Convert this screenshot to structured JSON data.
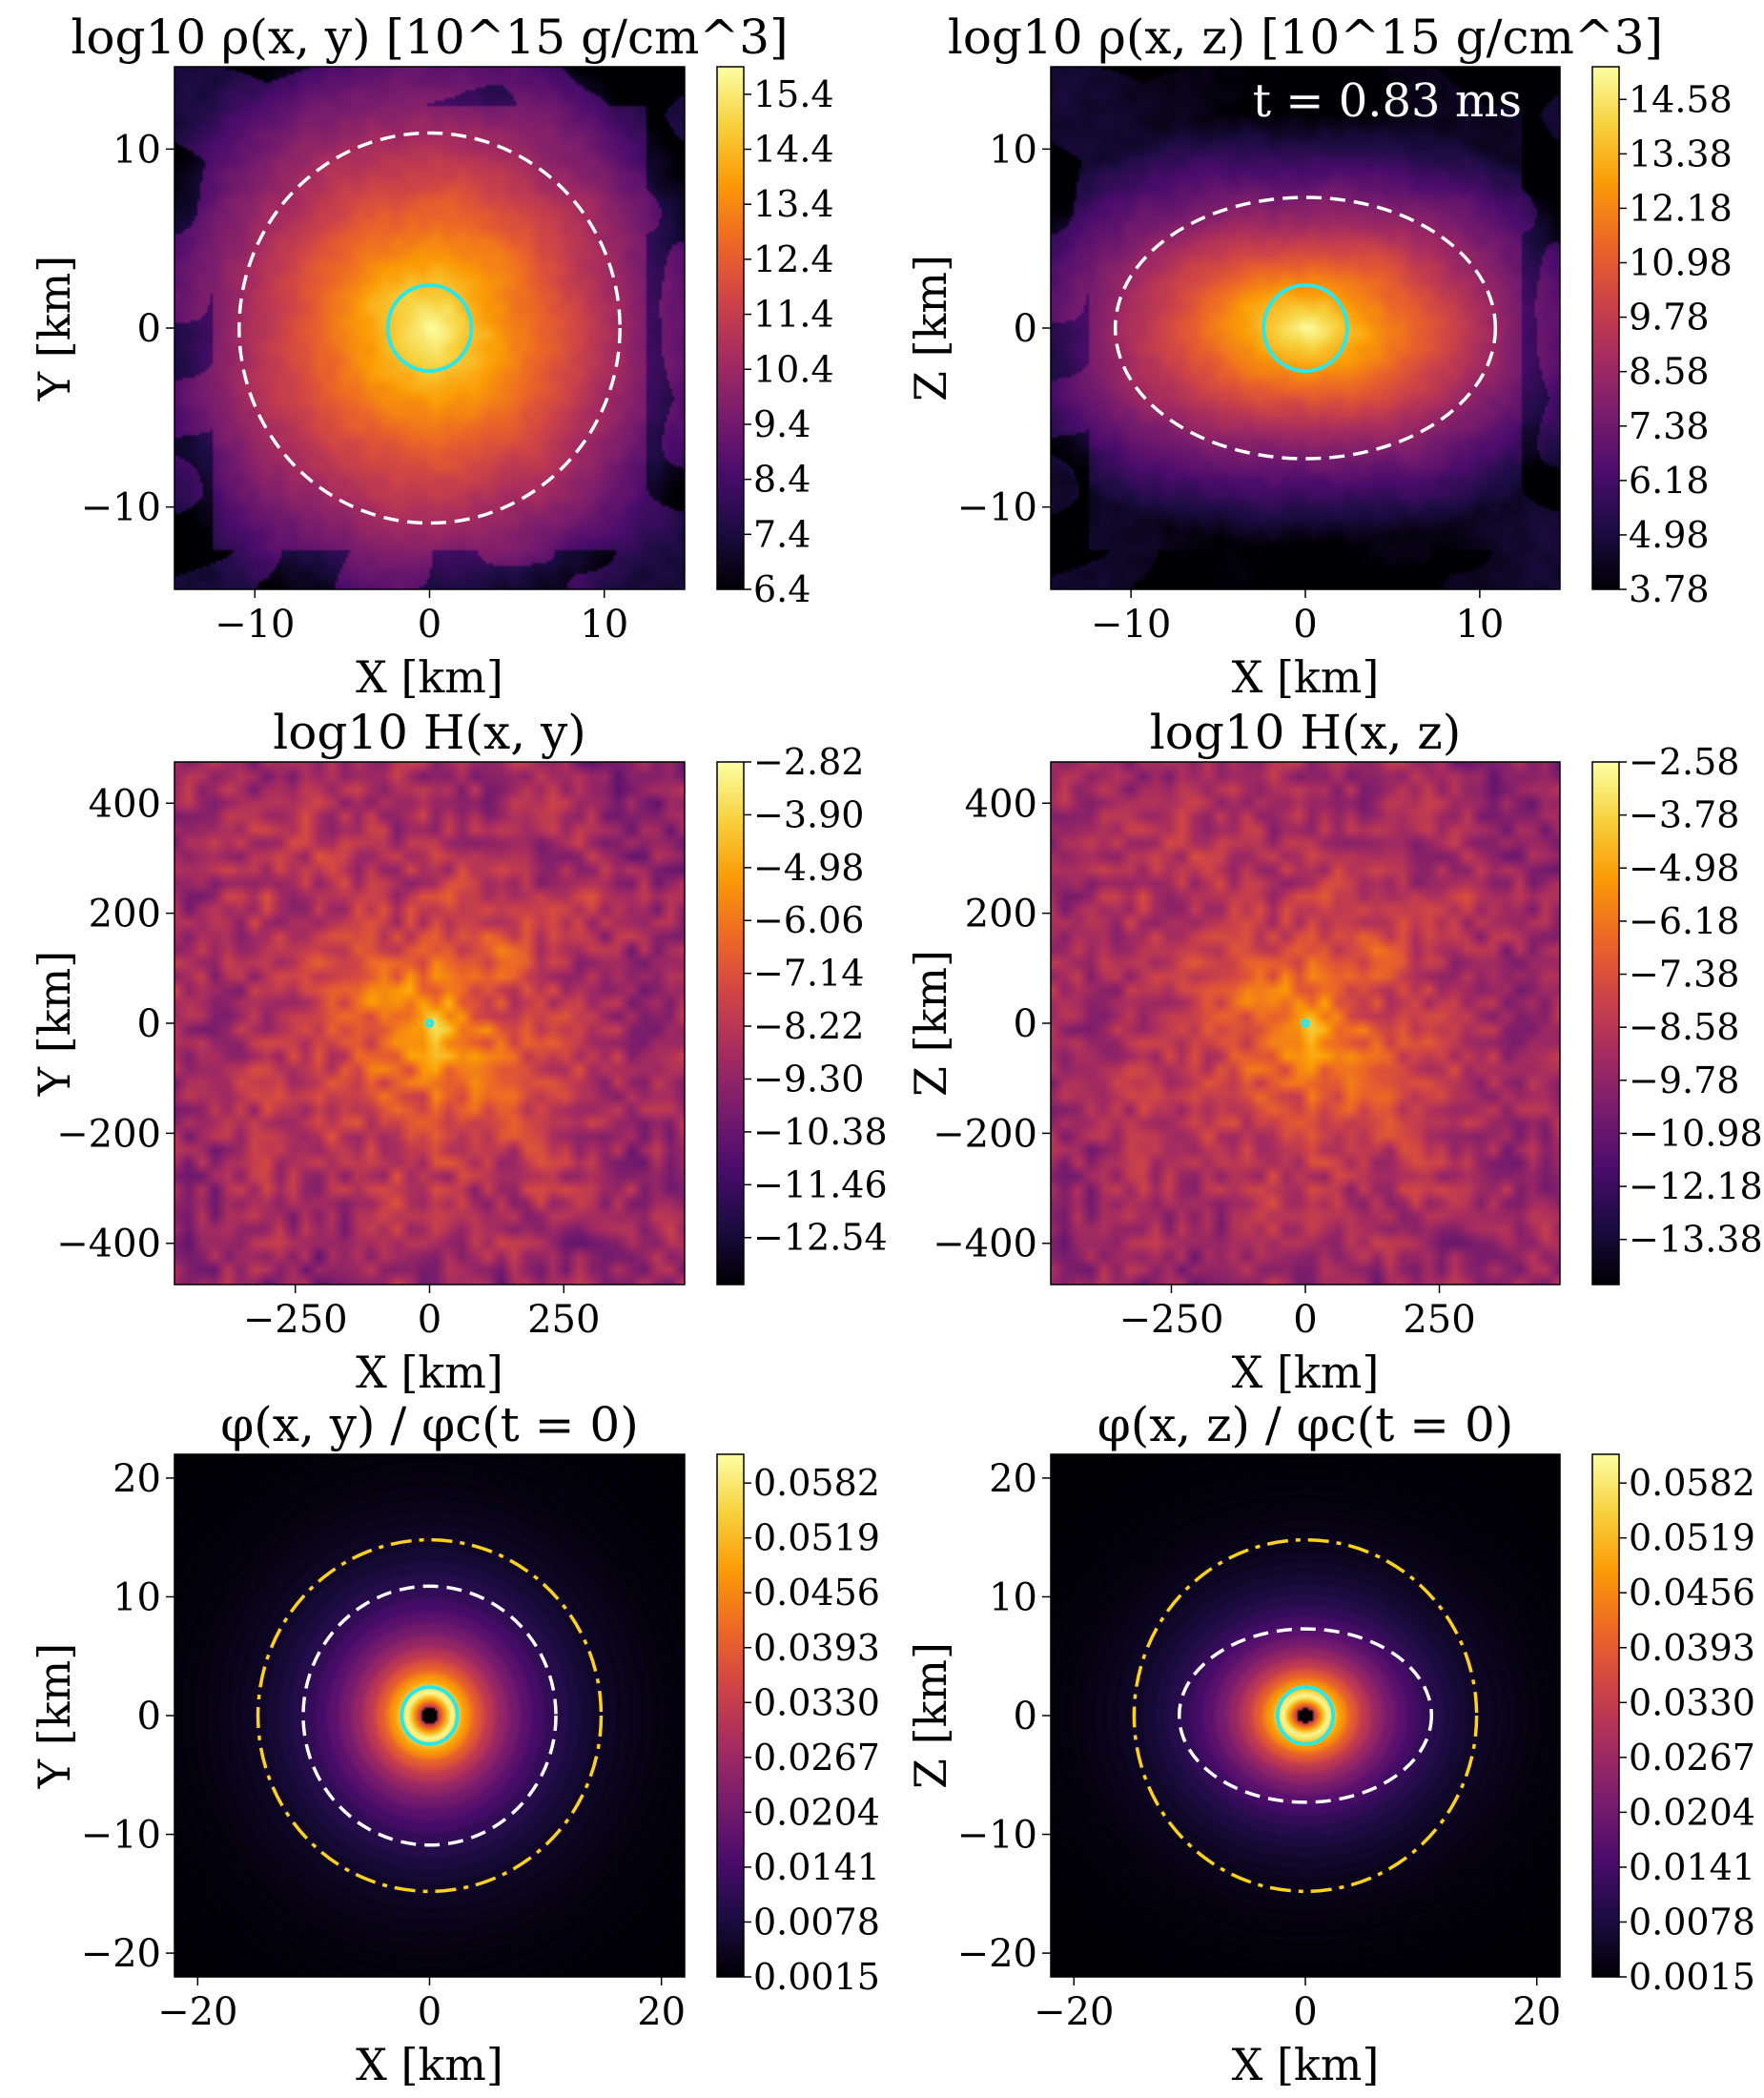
{
  "colors": {
    "colormap": [
      "#000004",
      "#1b0c41",
      "#4a0c6b",
      "#781c6d",
      "#a52c60",
      "#cf4446",
      "#ed6925",
      "#fb9b06",
      "#f7d13d",
      "#fcffa4"
    ],
    "cyan": "#2ee6e6",
    "white": "#ffffff",
    "gold": "#ffd21a"
  },
  "chart_data": [
    {
      "type": "heatmap",
      "title": "log10 ρ(x, y) [10^15 g/cm^3]",
      "xlabel": "X [km]",
      "ylabel": "Y [km]",
      "xlim": [
        -14.6,
        14.6
      ],
      "ylim": [
        -14.6,
        14.6
      ],
      "xticks": [
        {
          "v": -10,
          "label": "−10"
        },
        {
          "v": 0,
          "label": "0"
        },
        {
          "v": 10,
          "label": "10"
        }
      ],
      "yticks": [
        {
          "v": -10,
          "label": "−10"
        },
        {
          "v": 0,
          "label": "0"
        },
        {
          "v": 10,
          "label": "10"
        }
      ],
      "colorbar": {
        "range": [
          6.4,
          15.9
        ],
        "ticks": [
          "6.4",
          "7.4",
          "8.4",
          "9.4",
          "10.4",
          "11.4",
          "12.4",
          "13.4",
          "14.4",
          "15.4"
        ]
      },
      "field": {
        "kind": "density",
        "rx": 10.9,
        "rz": 10.9,
        "peak": 15.9,
        "floor": 6.4,
        "noise": 0.35
      },
      "contours": [
        {
          "style": "dashed",
          "color": "white",
          "rx": 10.9,
          "ry": 10.9
        },
        {
          "style": "solid",
          "color": "cyan",
          "rx": 2.4,
          "ry": 2.4
        }
      ],
      "annotation": ""
    },
    {
      "type": "heatmap",
      "title": "log10 ρ(x, z) [10^15 g/cm^3]",
      "xlabel": "X [km]",
      "ylabel": "Z [km]",
      "xlim": [
        -14.6,
        14.6
      ],
      "ylim": [
        -14.6,
        14.6
      ],
      "xticks": [
        {
          "v": -10,
          "label": "−10"
        },
        {
          "v": 0,
          "label": "0"
        },
        {
          "v": 10,
          "label": "10"
        }
      ],
      "yticks": [
        {
          "v": -10,
          "label": "−10"
        },
        {
          "v": 0,
          "label": "0"
        },
        {
          "v": 10,
          "label": "10"
        }
      ],
      "colorbar": {
        "range": [
          3.78,
          15.3
        ],
        "ticks": [
          "3.78",
          "4.98",
          "6.18",
          "7.38",
          "8.58",
          "9.78",
          "10.98",
          "12.18",
          "13.38",
          "14.58"
        ]
      },
      "field": {
        "kind": "disk",
        "rx": 10.9,
        "rz": 7.3,
        "peak": 15.3,
        "floor": 3.78,
        "noise": 0.4
      },
      "contours": [
        {
          "style": "dashed",
          "color": "white",
          "rx": 10.9,
          "ry": 7.3
        },
        {
          "style": "solid",
          "color": "cyan",
          "rx": 2.4,
          "ry": 2.4
        }
      ],
      "annotation": "t = 0.83 ms"
    },
    {
      "type": "heatmap",
      "title": "log10 H(x, y)",
      "xlabel": "X [km]",
      "ylabel": "Y [km]",
      "xlim": [
        -475,
        475
      ],
      "ylim": [
        -475,
        475
      ],
      "xticks": [
        {
          "v": -250,
          "label": "−250"
        },
        {
          "v": 0,
          "label": "0"
        },
        {
          "v": 250,
          "label": "250"
        }
      ],
      "yticks": [
        {
          "v": -400,
          "label": "−400"
        },
        {
          "v": -200,
          "label": "−200"
        },
        {
          "v": 0,
          "label": "0"
        },
        {
          "v": 200,
          "label": "200"
        },
        {
          "v": 400,
          "label": "400"
        }
      ],
      "colorbar": {
        "range": [
          -13.5,
          -2.82
        ],
        "ticks": [
          "−12.54",
          "−11.46",
          "−10.38",
          "−9.30",
          "−8.22",
          "−7.14",
          "−6.06",
          "−4.98",
          "−3.90",
          "−2.82"
        ]
      },
      "field": {
        "kind": "constraint",
        "peak": -4.6,
        "floor": -9.6,
        "noise": 1.6
      },
      "contours": [
        {
          "style": "solid",
          "color": "cyan",
          "rx": 5,
          "ry": 5
        }
      ],
      "annotation": ""
    },
    {
      "type": "heatmap",
      "title": "log10 H(x, z)",
      "xlabel": "X [km]",
      "ylabel": "Z [km]",
      "xlim": [
        -475,
        475
      ],
      "ylim": [
        -475,
        475
      ],
      "xticks": [
        {
          "v": -250,
          "label": "−250"
        },
        {
          "v": 0,
          "label": "0"
        },
        {
          "v": 250,
          "label": "250"
        }
      ],
      "yticks": [
        {
          "v": -400,
          "label": "−400"
        },
        {
          "v": -200,
          "label": "−200"
        },
        {
          "v": 0,
          "label": "0"
        },
        {
          "v": 200,
          "label": "200"
        },
        {
          "v": 400,
          "label": "400"
        }
      ],
      "colorbar": {
        "range": [
          -14.4,
          -2.58
        ],
        "ticks": [
          "−13.38",
          "−12.18",
          "−10.98",
          "−9.78",
          "−8.58",
          "−7.38",
          "−6.18",
          "−4.98",
          "−3.78",
          "−2.58"
        ]
      },
      "field": {
        "kind": "constraint",
        "peak": -5.0,
        "floor": -10.0,
        "noise": 1.6
      },
      "contours": [
        {
          "style": "solid",
          "color": "cyan",
          "rx": 5,
          "ry": 5
        }
      ],
      "annotation": ""
    },
    {
      "type": "heatmap",
      "title": "φ(x, y) / φc(t = 0)",
      "xlabel": "X [km]",
      "ylabel": "Y [km]",
      "xlim": [
        -22,
        22
      ],
      "ylim": [
        -22,
        22
      ],
      "xticks": [
        {
          "v": -20,
          "label": "−20"
        },
        {
          "v": 0,
          "label": "0"
        },
        {
          "v": 20,
          "label": "20"
        }
      ],
      "yticks": [
        {
          "v": -20,
          "label": "−20"
        },
        {
          "v": -10,
          "label": "−10"
        },
        {
          "v": 0,
          "label": "0"
        },
        {
          "v": 10,
          "label": "10"
        },
        {
          "v": 20,
          "label": "20"
        }
      ],
      "colorbar": {
        "range": [
          0.0015,
          0.0615
        ],
        "ticks": [
          "0.0015",
          "0.0078",
          "0.0141",
          "0.0204",
          "0.0267",
          "0.0330",
          "0.0393",
          "0.0456",
          "0.0519",
          "0.0582"
        ]
      },
      "field": {
        "kind": "scalar",
        "peak": 0.0615,
        "floor": 0.0015,
        "peakR": 1.9,
        "width": 4.8,
        "rz": 1.0
      },
      "contours": [
        {
          "style": "dashdot",
          "color": "gold",
          "rx": 14.8,
          "ry": 14.8
        },
        {
          "style": "dashed",
          "color": "white",
          "rx": 10.9,
          "ry": 10.9
        },
        {
          "style": "solid",
          "color": "cyan",
          "rx": 2.4,
          "ry": 2.4
        }
      ],
      "annotation": ""
    },
    {
      "type": "heatmap",
      "title": "φ(x, z) / φc(t = 0)",
      "xlabel": "X [km]",
      "ylabel": "Z [km]",
      "xlim": [
        -22,
        22
      ],
      "ylim": [
        -22,
        22
      ],
      "xticks": [
        {
          "v": -20,
          "label": "−20"
        },
        {
          "v": 0,
          "label": "0"
        },
        {
          "v": 20,
          "label": "20"
        }
      ],
      "yticks": [
        {
          "v": -20,
          "label": "−20"
        },
        {
          "v": -10,
          "label": "−10"
        },
        {
          "v": 0,
          "label": "0"
        },
        {
          "v": 10,
          "label": "10"
        },
        {
          "v": 20,
          "label": "20"
        }
      ],
      "colorbar": {
        "range": [
          0.0015,
          0.0615
        ],
        "ticks": [
          "0.0015",
          "0.0078",
          "0.0141",
          "0.0204",
          "0.0267",
          "0.0330",
          "0.0393",
          "0.0456",
          "0.0519",
          "0.0582"
        ]
      },
      "field": {
        "kind": "scalar",
        "peak": 0.0615,
        "floor": 0.0015,
        "peakR": 1.9,
        "width": 4.8,
        "rz": 0.85
      },
      "contours": [
        {
          "style": "dashdot",
          "color": "gold",
          "rx": 14.8,
          "ry": 14.8
        },
        {
          "style": "dashed",
          "color": "white",
          "rx": 10.9,
          "ry": 7.3
        },
        {
          "style": "solid",
          "color": "cyan",
          "rx": 2.4,
          "ry": 2.4
        }
      ],
      "annotation": ""
    }
  ]
}
